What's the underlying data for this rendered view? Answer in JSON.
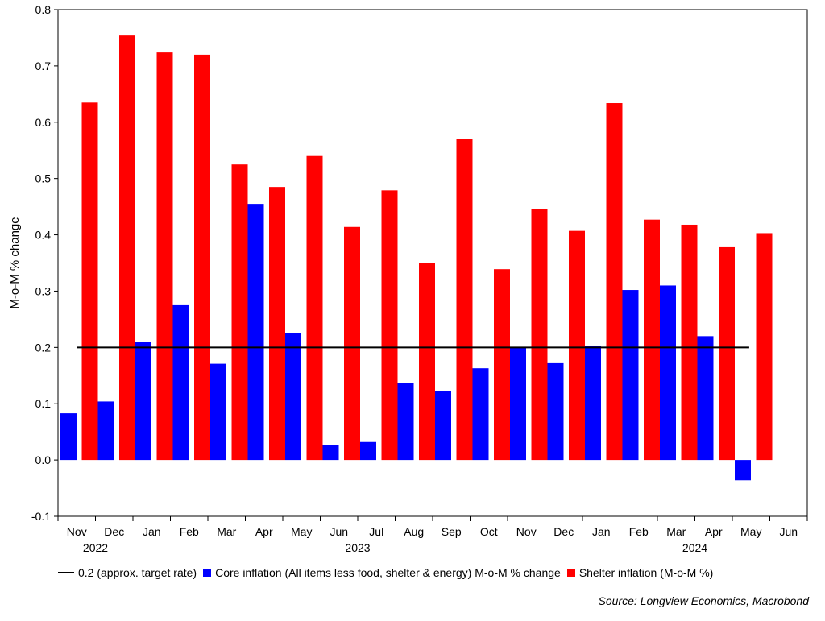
{
  "chart_data": {
    "type": "bar",
    "ylabel": "M-o-M % change",
    "ylim": [
      -0.1,
      0.8
    ],
    "yticks": [
      "-0.1",
      "0.0",
      "0.1",
      "0.2",
      "0.3",
      "0.4",
      "0.5",
      "0.6",
      "0.7",
      "0.8"
    ],
    "categories": [
      "Nov",
      "Dec",
      "Jan",
      "Feb",
      "Mar",
      "Apr",
      "May",
      "Jun",
      "Jul",
      "Aug",
      "Sep",
      "Oct",
      "Nov",
      "Dec",
      "Jan",
      "Feb",
      "Mar",
      "Apr",
      "May",
      "Jun"
    ],
    "years": [
      {
        "label": "2022",
        "index": 1
      },
      {
        "label": "2023",
        "index": 8
      },
      {
        "label": "2024",
        "index": 17
      }
    ],
    "series": [
      {
        "name": "Core inflation (All items less food, shelter & energy) M-o-M % change",
        "color": "#0000ff",
        "values": [
          0.083,
          0.104,
          0.21,
          0.275,
          0.171,
          0.455,
          0.225,
          0.026,
          0.032,
          0.137,
          0.123,
          0.163,
          0.2,
          0.172,
          0.202,
          0.302,
          0.31,
          0.22,
          -0.036,
          null
        ]
      },
      {
        "name": "Shelter inflation (M-o-M %)",
        "color": "#ff0000",
        "values": [
          0.635,
          0.754,
          0.724,
          0.72,
          0.525,
          0.485,
          0.54,
          0.414,
          0.479,
          0.35,
          0.57,
          0.339,
          0.446,
          0.407,
          0.634,
          0.427,
          0.418,
          0.378,
          0.403,
          null
        ]
      }
    ],
    "reference_line": {
      "name": "0.2 (approx. target rate)",
      "value": 0.2,
      "color": "#000000",
      "start_index": 0,
      "end_index": 18
    },
    "legend_position": "bottom",
    "source": "Source: Longview Economics, Macrobond"
  }
}
